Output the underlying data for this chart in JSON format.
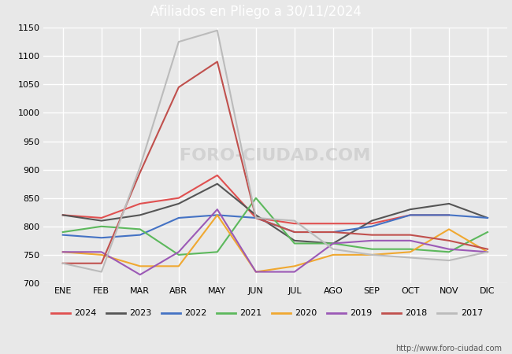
{
  "title": "Afiliados en Pliego a 30/11/2024",
  "header_bg": "#4a7cc9",
  "months": [
    "ENE",
    "FEB",
    "MAR",
    "ABR",
    "MAY",
    "JUN",
    "JUL",
    "AGO",
    "SEP",
    "OCT",
    "NOV",
    "DIC"
  ],
  "ylim": [
    700,
    1150
  ],
  "yticks": [
    700,
    750,
    800,
    850,
    900,
    950,
    1000,
    1050,
    1100,
    1150
  ],
  "series": {
    "2024": {
      "color": "#e05050",
      "data": [
        820,
        815,
        840,
        850,
        890,
        815,
        805,
        805,
        805,
        820,
        820,
        null
      ],
      "linewidth": 1.5
    },
    "2023": {
      "color": "#555555",
      "data": [
        820,
        810,
        820,
        840,
        875,
        820,
        775,
        770,
        810,
        830,
        840,
        815
      ],
      "linewidth": 1.5
    },
    "2022": {
      "color": "#4472c4",
      "data": [
        785,
        780,
        785,
        815,
        820,
        815,
        790,
        790,
        800,
        820,
        820,
        815
      ],
      "linewidth": 1.5
    },
    "2021": {
      "color": "#5cb85c",
      "data": [
        790,
        800,
        795,
        750,
        755,
        850,
        770,
        770,
        760,
        760,
        755,
        790
      ],
      "linewidth": 1.5
    },
    "2020": {
      "color": "#f0a830",
      "data": [
        755,
        750,
        730,
        730,
        820,
        720,
        730,
        750,
        750,
        755,
        795,
        755
      ],
      "linewidth": 1.5
    },
    "2019": {
      "color": "#9b59b6",
      "data": [
        755,
        755,
        715,
        755,
        830,
        720,
        720,
        770,
        775,
        775,
        760,
        755
      ],
      "linewidth": 1.5
    },
    "2018": {
      "color": "#c0504d",
      "data": [
        735,
        735,
        895,
        1045,
        1090,
        815,
        790,
        790,
        785,
        785,
        775,
        760
      ],
      "linewidth": 1.5
    },
    "2017": {
      "color": "#bbbbbb",
      "data": [
        735,
        720,
        905,
        1125,
        1145,
        815,
        810,
        760,
        750,
        745,
        740,
        755
      ],
      "linewidth": 1.5
    }
  },
  "legend_order": [
    "2024",
    "2023",
    "2022",
    "2021",
    "2020",
    "2019",
    "2018",
    "2017"
  ],
  "footnote": "http://www.foro-ciudad.com",
  "bg_color": "#e8e8e8",
  "plot_bg_color": "#e8e8e8",
  "grid_color": "#ffffff"
}
